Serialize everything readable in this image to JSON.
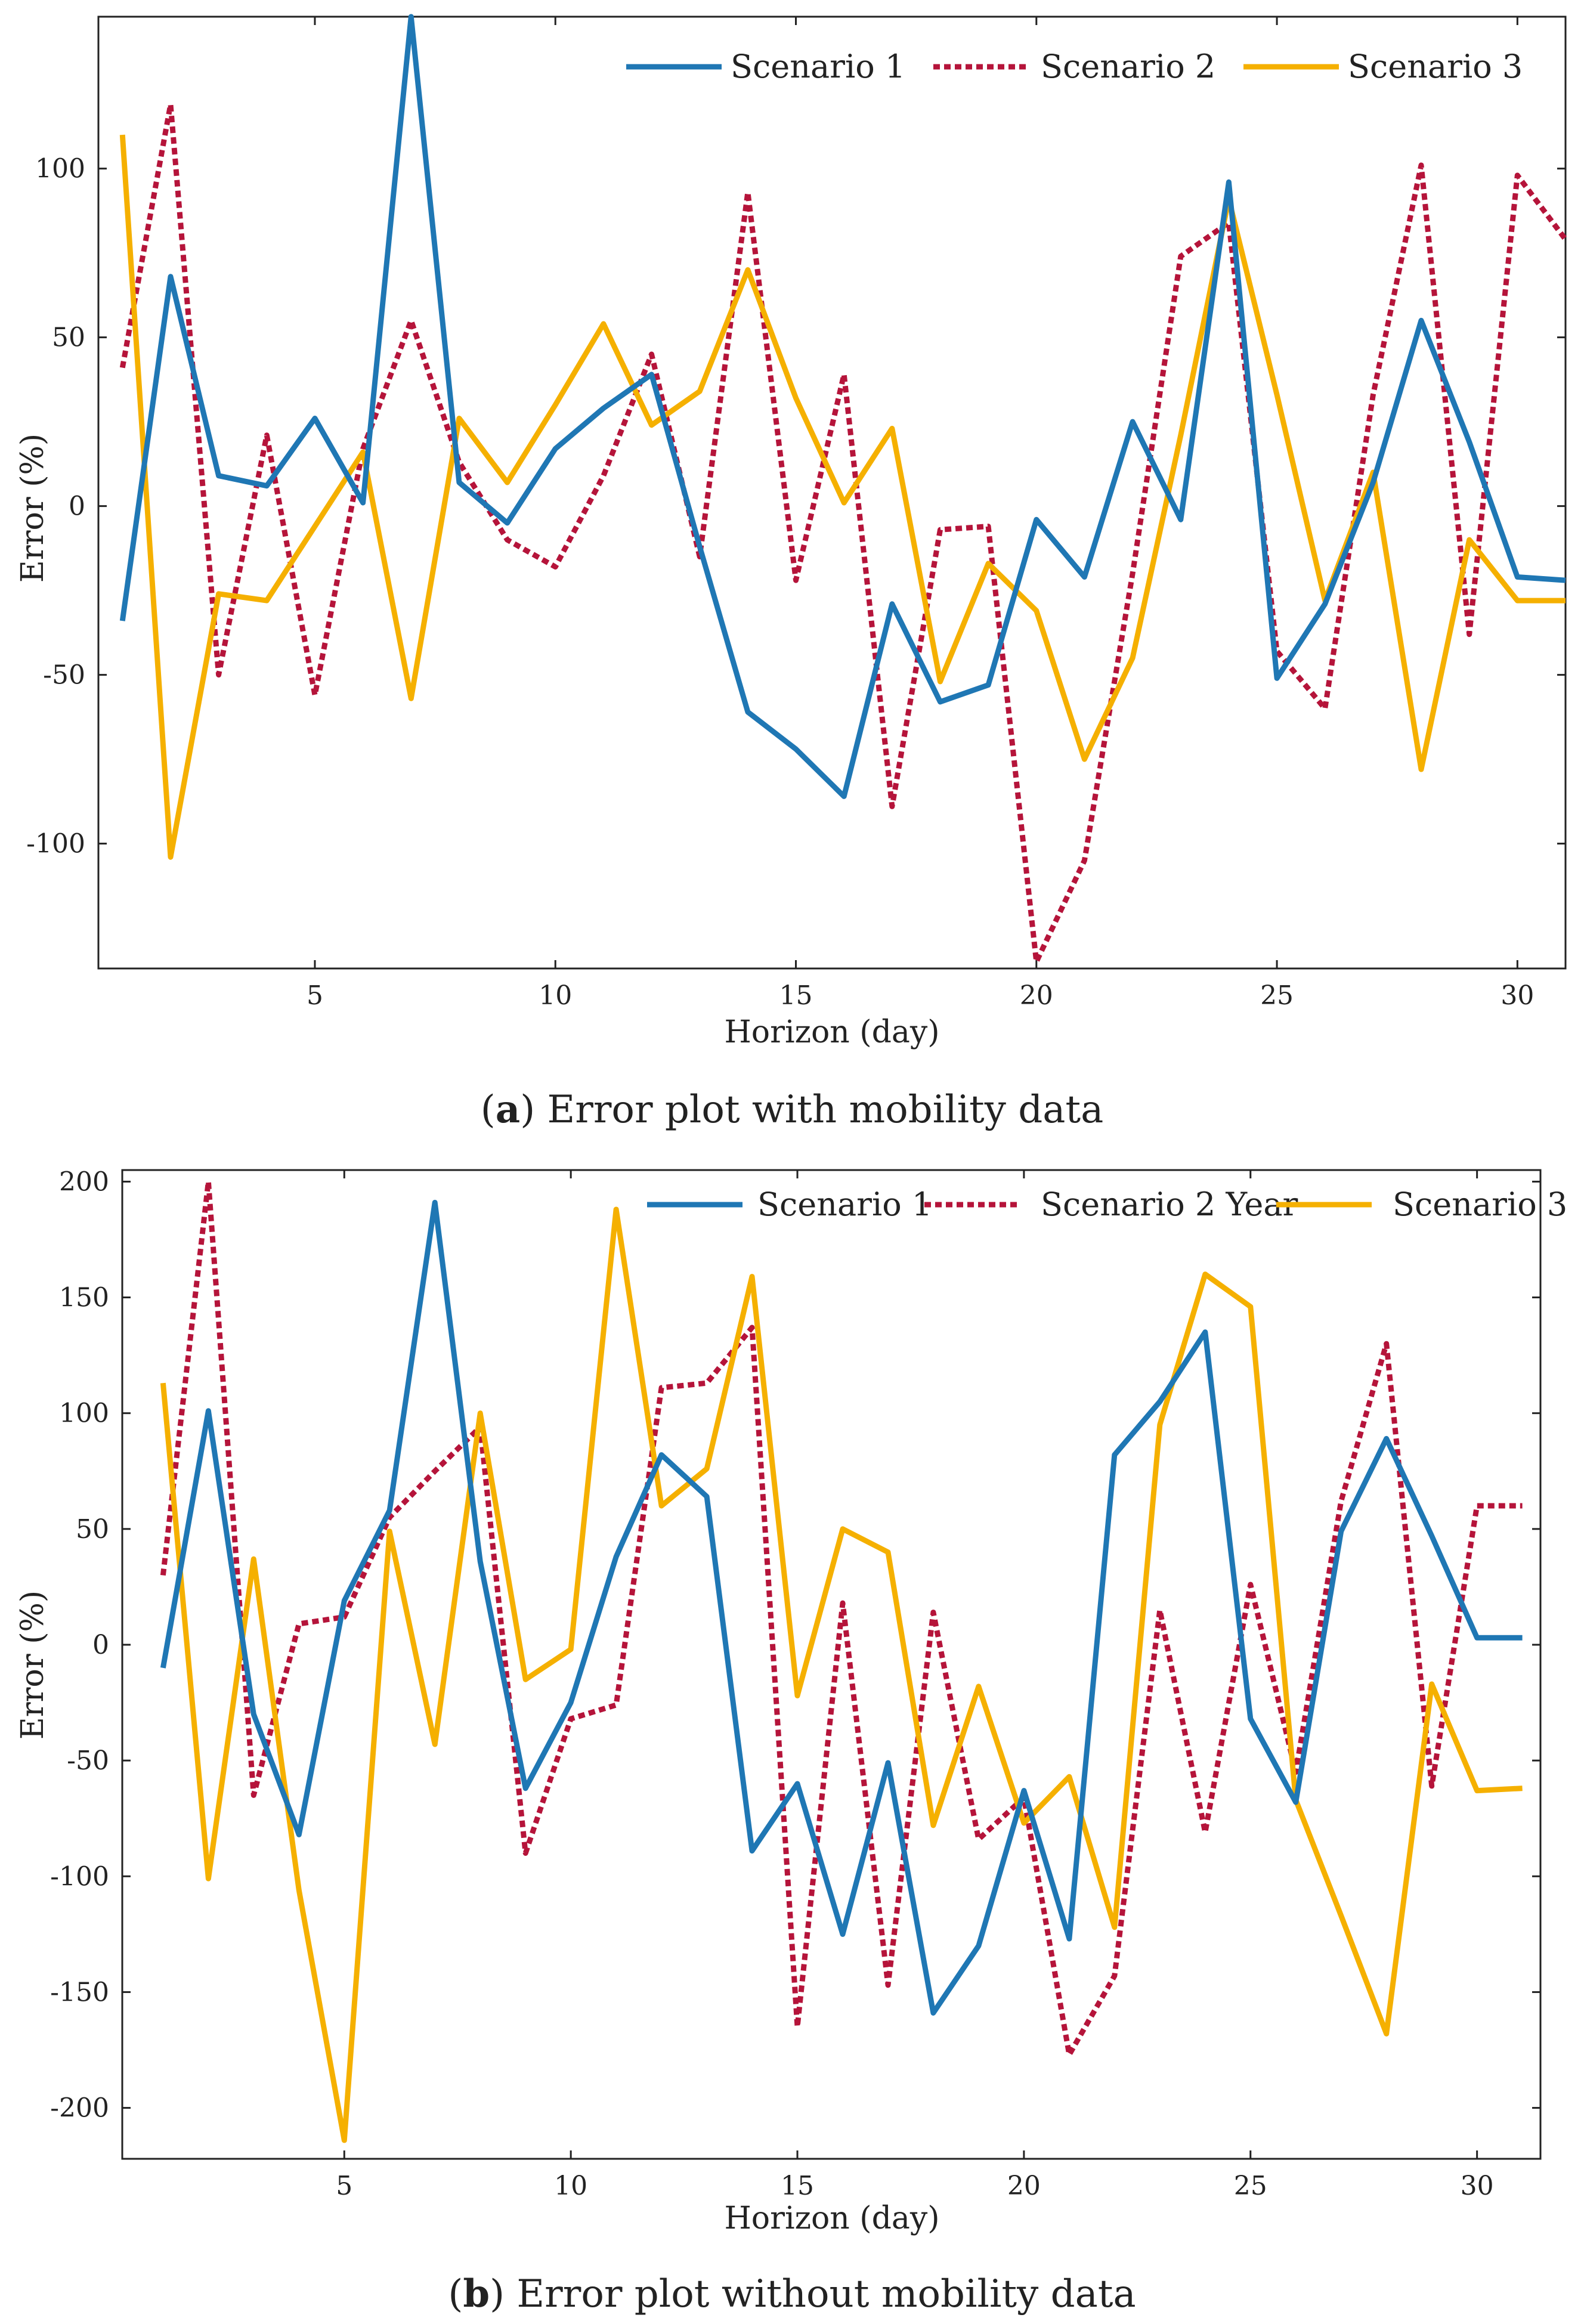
{
  "colors": {
    "s1": "#1f77b4",
    "s2": "#b5143a",
    "s3": "#f5b000"
  },
  "chart_data": [
    {
      "type": "line",
      "caption_label": "a",
      "caption_text": "Error plot with mobility data",
      "xlabel": "Horizon (day)",
      "ylabel": "Error (%)",
      "xlim": [
        0.5,
        31
      ],
      "ylim": [
        -137,
        145
      ],
      "xticks": [
        5,
        10,
        15,
        20,
        25,
        30
      ],
      "yticks": [
        -100,
        -50,
        0,
        50,
        100
      ],
      "legend_position": "top-right",
      "x": [
        1,
        2,
        3,
        4,
        5,
        6,
        7,
        8,
        9,
        10,
        11,
        12,
        13,
        14,
        15,
        16,
        17,
        18,
        19,
        20,
        21,
        22,
        23,
        24,
        25,
        26,
        27,
        28,
        29,
        30,
        31
      ],
      "series": [
        {
          "name": "Scenario 1",
          "style": "solid",
          "color_key": "s1",
          "values": [
            -34,
            68,
            9,
            6,
            26,
            1,
            145,
            7,
            -5,
            17,
            29,
            39,
            -12,
            -61,
            -72,
            -86,
            -29,
            -58,
            -53,
            -4,
            -21,
            25,
            -4,
            96,
            -51,
            -29,
            7,
            55,
            19,
            -21,
            -22
          ]
        },
        {
          "name": "Scenario 2",
          "style": "dotted",
          "color_key": "s2",
          "values": [
            41,
            119,
            -50,
            21,
            -56,
            17,
            55,
            13,
            -10,
            -18,
            9,
            45,
            -15,
            93,
            -22,
            39,
            -89,
            -7,
            -6,
            -135,
            -105,
            -20,
            74,
            84,
            -43,
            -60,
            33,
            101,
            -38,
            98,
            79
          ]
        },
        {
          "name": "Scenario 3",
          "style": "solid",
          "color_key": "s3",
          "values": [
            110,
            -104,
            -26,
            -28,
            -6,
            16,
            -57,
            26,
            7,
            30,
            54,
            24,
            34,
            70,
            32,
            1,
            23,
            -52,
            -17,
            -31,
            -75,
            -45,
            21,
            91,
            33,
            -28,
            10,
            -78,
            -10,
            -28,
            -28
          ]
        }
      ]
    },
    {
      "type": "line",
      "caption_label": "b",
      "caption_text": "Error plot without mobility data",
      "xlabel": "Horizon (day)",
      "ylabel": "Error (%)",
      "xlim": [
        0.1,
        31.4
      ],
      "ylim": [
        -222,
        205
      ],
      "xticks": [
        5,
        10,
        15,
        20,
        25,
        30
      ],
      "yticks": [
        -200,
        -150,
        -100,
        -50,
        0,
        50,
        100,
        150,
        200
      ],
      "legend_position": "top-right",
      "x": [
        1,
        2,
        3,
        4,
        5,
        6,
        7,
        8,
        9,
        10,
        11,
        12,
        13,
        14,
        15,
        16,
        17,
        18,
        19,
        20,
        21,
        22,
        23,
        24,
        25,
        26,
        27,
        28,
        29,
        30,
        31
      ],
      "series": [
        {
          "name": "Scenario 1",
          "style": "solid",
          "color_key": "s1",
          "values": [
            -10,
            101,
            -30,
            -82,
            19,
            58,
            191,
            36,
            -62,
            -25,
            38,
            82,
            64,
            -89,
            -60,
            -125,
            -51,
            -159,
            -130,
            -63,
            -127,
            82,
            105,
            135,
            -32,
            -68,
            49,
            89,
            47,
            3,
            3
          ]
        },
        {
          "name": "Scenario 2 Year",
          "style": "dotted",
          "color_key": "s2",
          "values": [
            30,
            200,
            -65,
            9,
            12,
            55,
            75,
            94,
            -90,
            -32,
            -26,
            111,
            113,
            137,
            -165,
            18,
            -147,
            14,
            -84,
            -66,
            -177,
            -143,
            15,
            -81,
            26,
            -55,
            62,
            130,
            -61,
            60,
            60
          ]
        },
        {
          "name": "Scenario 3",
          "style": "solid",
          "color_key": "s3",
          "values": [
            113,
            -101,
            37,
            -106,
            -214,
            49,
            -43,
            100,
            -15,
            -2,
            188,
            60,
            76,
            159,
            -22,
            50,
            40,
            -78,
            -18,
            -77,
            -57,
            -122,
            95,
            160,
            146,
            -67,
            -117,
            -168,
            -17,
            -63,
            -62
          ]
        }
      ]
    }
  ]
}
